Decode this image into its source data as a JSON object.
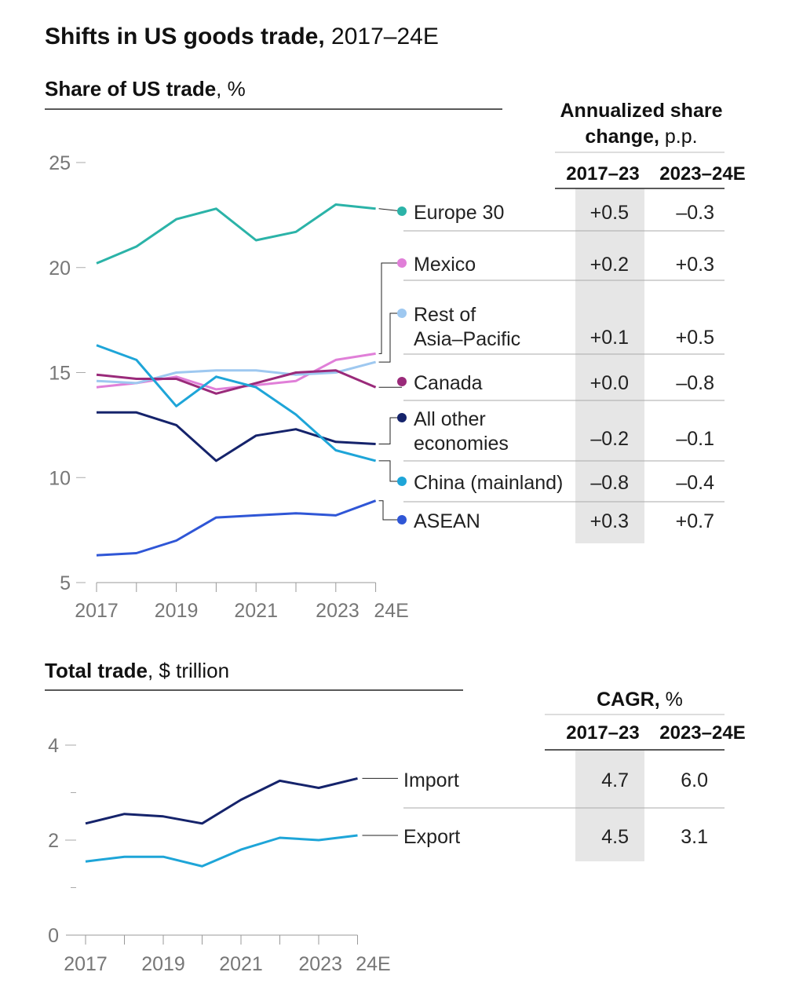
{
  "title": {
    "bold": "Shifts in US goods trade,",
    "rest": " 2017–24E"
  },
  "chart_data": [
    {
      "type": "line",
      "title": "Share of US trade",
      "title_unit": ", %",
      "x": [
        "2017",
        "2018",
        "2019",
        "2020",
        "2021",
        "2022",
        "2023",
        "24E"
      ],
      "x_tick_labels": [
        "2017",
        "2019",
        "2021",
        "2023",
        "24E"
      ],
      "y_ticks": [
        25,
        20,
        15,
        10,
        5
      ],
      "ylim": [
        5,
        25
      ],
      "series": [
        {
          "name": "Europe 30",
          "color": "#2bb3a8",
          "values": [
            20.2,
            21.0,
            22.3,
            22.8,
            21.3,
            21.7,
            23.0,
            22.8
          ]
        },
        {
          "name": "Mexico",
          "color": "#e07fd8",
          "values": [
            14.3,
            14.5,
            14.8,
            14.2,
            14.4,
            14.6,
            15.6,
            15.9
          ]
        },
        {
          "name": "Rest of Asia–Pacific",
          "color": "#9ec8f0",
          "values": [
            14.6,
            14.5,
            15.0,
            15.1,
            15.1,
            14.9,
            15.0,
            15.5
          ]
        },
        {
          "name": "Canada",
          "color": "#9a2a7a",
          "values": [
            14.9,
            14.7,
            14.7,
            14.0,
            14.5,
            15.0,
            15.1,
            14.3
          ]
        },
        {
          "name": "All other economies",
          "color": "#15236b",
          "values": [
            13.1,
            13.1,
            12.5,
            10.8,
            12.0,
            12.3,
            11.7,
            11.6
          ]
        },
        {
          "name": "China (mainland)",
          "color": "#1ea5d8",
          "values": [
            16.3,
            15.6,
            13.4,
            14.8,
            14.3,
            13.0,
            11.3,
            10.8
          ]
        },
        {
          "name": "ASEAN",
          "color": "#2f56d6",
          "values": [
            6.3,
            6.4,
            7.0,
            8.1,
            8.2,
            8.3,
            8.2,
            8.9
          ]
        }
      ],
      "legend": [
        {
          "line1": "Europe 30",
          "line2": ""
        },
        {
          "line1": "Mexico",
          "line2": ""
        },
        {
          "line1": "Rest of",
          "line2": "Asia–Pacific"
        },
        {
          "line1": "Canada",
          "line2": ""
        },
        {
          "line1": "All other",
          "line2": "economies"
        },
        {
          "line1": "China (mainland)",
          "line2": ""
        },
        {
          "line1": "ASEAN",
          "line2": ""
        }
      ],
      "table": {
        "title": "Annualized share",
        "title_line2_bold": "change,",
        "title_line2_unit": " p.p.",
        "columns": [
          "2017–23",
          "2023–24E"
        ],
        "rows": [
          [
            "+0.5",
            "–0.3"
          ],
          [
            "+0.2",
            "+0.3"
          ],
          [
            "+0.1",
            "+0.5"
          ],
          [
            "+0.0",
            "–0.8"
          ],
          [
            "–0.2",
            "–0.1"
          ],
          [
            "–0.8",
            "–0.4"
          ],
          [
            "+0.3",
            "+0.7"
          ]
        ]
      }
    },
    {
      "type": "line",
      "title": "Total trade",
      "title_unit": ", $ trillion",
      "x": [
        "2017",
        "2018",
        "2019",
        "2020",
        "2021",
        "2022",
        "2023",
        "24E"
      ],
      "x_tick_labels": [
        "2017",
        "2019",
        "2021",
        "2023",
        "24E"
      ],
      "y_ticks": [
        4,
        2,
        0
      ],
      "ylim": [
        0,
        4
      ],
      "series": [
        {
          "name": "Import",
          "color": "#15236b",
          "values": [
            2.35,
            2.55,
            2.5,
            2.35,
            2.85,
            3.25,
            3.1,
            3.3
          ]
        },
        {
          "name": "Export",
          "color": "#1ea5d8",
          "values": [
            1.55,
            1.65,
            1.65,
            1.45,
            1.8,
            2.05,
            2.0,
            2.1
          ]
        }
      ],
      "table": {
        "title_bold": "CAGR,",
        "title_unit": " %",
        "columns": [
          "2017–23",
          "2023–24E"
        ],
        "rows": [
          [
            "4.7",
            "6.0"
          ],
          [
            "4.5",
            "3.1"
          ]
        ]
      }
    }
  ]
}
